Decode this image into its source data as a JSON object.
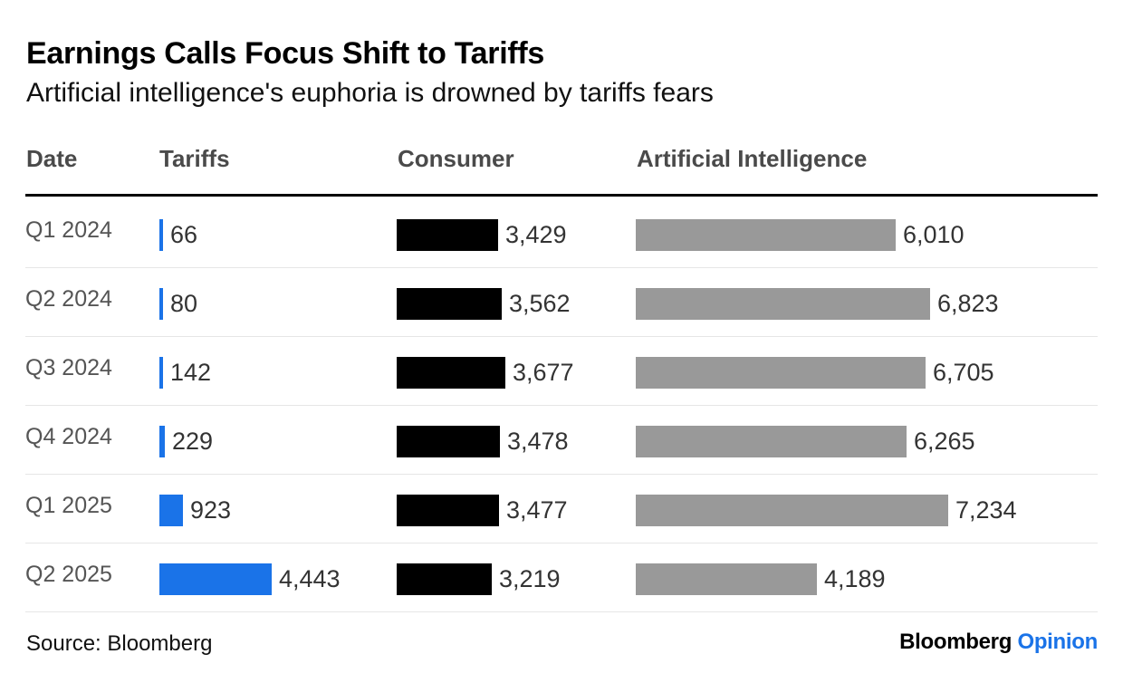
{
  "title": "Earnings Calls Focus Shift to Tariffs",
  "subtitle": "Artificial intelligence's euphoria is drowned by tariffs fears",
  "colors": {
    "tariffs": "#1a73e8",
    "consumer": "#000000",
    "ai": "#999999"
  },
  "chart_data": {
    "type": "table",
    "columns": [
      "Date",
      "Tariffs",
      "Consumer",
      "Artificial Intelligence"
    ],
    "categories": [
      "Q1 2024",
      "Q2 2024",
      "Q3 2024",
      "Q4 2024",
      "Q1 2025",
      "Q2 2025"
    ],
    "series": [
      {
        "name": "Tariffs",
        "values": [
          66,
          80,
          142,
          229,
          923,
          4443
        ],
        "labels": [
          "66",
          "80",
          "142",
          "229",
          "923",
          "4,443"
        ]
      },
      {
        "name": "Consumer",
        "values": [
          3429,
          3562,
          3677,
          3478,
          3477,
          3219
        ],
        "labels": [
          "3,429",
          "3,562",
          "3,677",
          "3,478",
          "3,477",
          "3,219"
        ]
      },
      {
        "name": "Artificial Intelligence",
        "values": [
          6010,
          6823,
          6705,
          6265,
          7234,
          4189
        ],
        "labels": [
          "6,010",
          "6,823",
          "6,705",
          "6,265",
          "7,234",
          "4,189"
        ]
      }
    ]
  },
  "footer": {
    "source": "Source: Bloomberg",
    "brand_primary": "Bloomberg",
    "brand_secondary": "Opinion"
  }
}
